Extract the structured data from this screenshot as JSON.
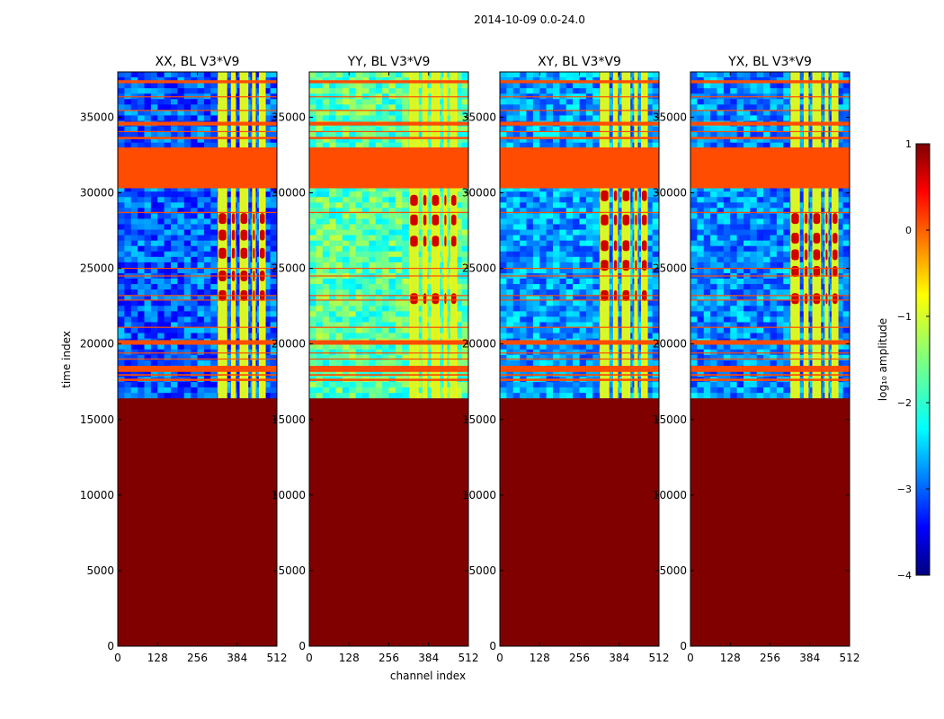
{
  "chart_data": {
    "type": "heatmap",
    "title": "2014-10-09 0.0-24.0",
    "xlabel": "channel index",
    "ylabel": "time index",
    "xlim": [
      0,
      512
    ],
    "ylim": [
      0,
      38000
    ],
    "xticks": [
      0,
      128,
      256,
      384,
      512
    ],
    "yticks": [
      0,
      5000,
      10000,
      15000,
      20000,
      25000,
      30000,
      35000
    ],
    "panels": [
      {
        "title": "XX, BL V3*V9",
        "hot_rows": [
          28300,
          27200,
          26000,
          24500,
          23200
        ]
      },
      {
        "title": "YY, BL V3*V9",
        "hot_rows": [
          29500,
          28200,
          26800,
          23000
        ]
      },
      {
        "title": "XY, BL V3*V9",
        "hot_rows": [
          29800,
          28200,
          26500,
          25200,
          23200
        ]
      },
      {
        "title": "YX, BL V3*V9",
        "hot_rows": [
          28300,
          27000,
          25900,
          24800,
          23000
        ]
      }
    ],
    "colorbar": {
      "label": "log₁₀ amplitude",
      "range": [
        -4,
        1
      ],
      "ticks": [
        "−4",
        "−3",
        "−2",
        "−1",
        "0",
        "1"
      ]
    },
    "data_start_time": 16400,
    "saturated_region_value": 1,
    "flagged_value": 0,
    "flagged_time_bands": [
      [
        37250,
        37450
      ],
      [
        34450,
        34700
      ],
      [
        33550,
        33700
      ],
      [
        30300,
        33000
      ],
      [
        19950,
        20250
      ],
      [
        18150,
        18550
      ],
      [
        17550,
        17700
      ],
      [
        17900,
        18000
      ]
    ],
    "flagged_time_lines": [
      36350,
      35450,
      34050,
      31150,
      28700,
      25000,
      24500,
      23200,
      22900,
      21100,
      19400,
      19000
    ],
    "bright_channel_columns": [
      {
        "start": 322,
        "end": 352
      },
      {
        "start": 364,
        "end": 380
      },
      {
        "start": 392,
        "end": 420
      },
      {
        "start": 432,
        "end": 444
      },
      {
        "start": 454,
        "end": 476
      }
    ]
  }
}
